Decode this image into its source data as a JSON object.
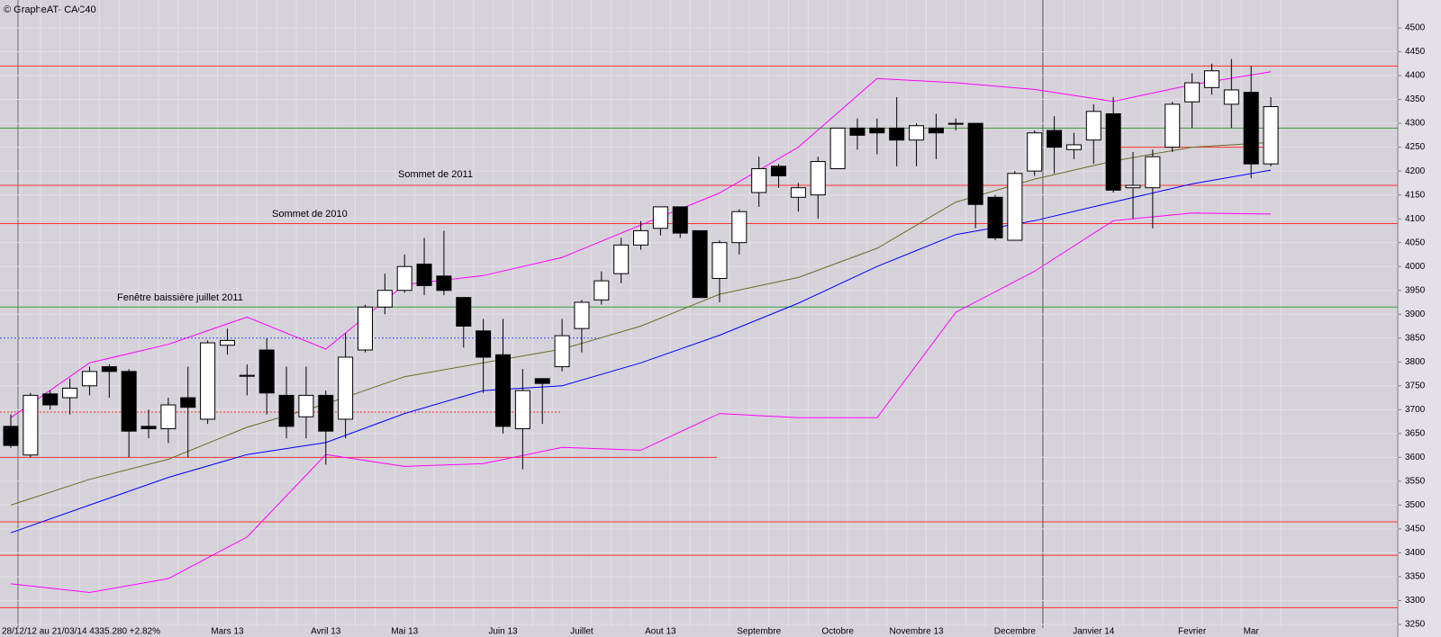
{
  "chart_data": {
    "type": "candlestick",
    "title": "© GrapheAT- CAC40",
    "footer": "28/12/12 au 21/03/14  4335.280  +2.82%",
    "categories": [
      null,
      null,
      null,
      null,
      null,
      null,
      null,
      null,
      null,
      null,
      null,
      "Mars 13",
      null,
      null,
      null,
      null,
      "Avril 13",
      null,
      null,
      null,
      "Mai 13",
      null,
      null,
      null,
      null,
      "Juin 13",
      null,
      null,
      null,
      "Juillet",
      null,
      null,
      null,
      "Aout 13",
      null,
      null,
      null,
      null,
      "Septembre",
      null,
      null,
      null,
      "Octobre",
      null,
      null,
      null,
      "Novembre 13",
      null,
      null,
      null,
      null,
      "Decembre",
      null,
      null,
      null,
      "Janvier 14",
      null,
      null,
      null,
      null,
      "Fevrier",
      null,
      null,
      "Mar",
      null
    ],
    "open": [
      3665,
      3605,
      3733,
      3725,
      3750,
      3790,
      3780,
      3665,
      3660,
      3725,
      3680,
      3835,
      3770,
      3825,
      3730,
      3685,
      3730,
      3680,
      3825,
      3915,
      3950,
      4005,
      3980,
      3935,
      3865,
      3815,
      3660,
      3765,
      3790,
      3870,
      3930,
      3985,
      4045,
      4080,
      4125,
      4075,
      3975,
      4050,
      4155,
      4210,
      4145,
      4150,
      4205,
      4290,
      4290,
      4290,
      4265,
      4290,
      4298,
      4300,
      4145,
      4055,
      4200,
      4285,
      4245,
      4265,
      4320,
      4165,
      4165,
      4250,
      4345,
      4375,
      4340,
      4365,
      4215
    ],
    "high": [
      3690,
      3735,
      3740,
      3765,
      3790,
      3795,
      3785,
      3700,
      3725,
      3790,
      3845,
      3870,
      3795,
      3850,
      3790,
      3790,
      3740,
      3860,
      3920,
      3985,
      4025,
      4060,
      4075,
      3935,
      3890,
      3890,
      3785,
      3765,
      3890,
      3930,
      3990,
      4060,
      4095,
      4125,
      4125,
      4075,
      4055,
      4120,
      4230,
      4215,
      4175,
      4230,
      4290,
      4310,
      4310,
      4355,
      4300,
      4320,
      4310,
      4300,
      4150,
      4200,
      4285,
      4315,
      4280,
      4340,
      4355,
      4240,
      4245,
      4345,
      4405,
      4425,
      4435,
      4420,
      4355
    ],
    "low": [
      3620,
      3600,
      3700,
      3690,
      3730,
      3725,
      3600,
      3640,
      3630,
      3600,
      3670,
      3815,
      3730,
      3690,
      3640,
      3640,
      3585,
      3640,
      3820,
      3900,
      3945,
      3940,
      3940,
      3830,
      3735,
      3650,
      3575,
      3670,
      3780,
      3820,
      3920,
      3965,
      4035,
      4065,
      4060,
      3935,
      3925,
      4025,
      4125,
      4165,
      4115,
      4100,
      4205,
      4245,
      4235,
      4210,
      4210,
      4225,
      4285,
      4080,
      4055,
      4055,
      4190,
      4195,
      4225,
      4215,
      4155,
      4100,
      4080,
      4240,
      4290,
      4360,
      4290,
      4185,
      4210
    ],
    "close": [
      3625,
      3730,
      3710,
      3745,
      3780,
      3780,
      3655,
      3660,
      3710,
      3705,
      3840,
      3845,
      3772,
      3735,
      3665,
      3730,
      3655,
      3810,
      3915,
      3950,
      4000,
      3960,
      3950,
      3875,
      3810,
      3665,
      3740,
      3755,
      3855,
      3925,
      3970,
      4045,
      4075,
      4125,
      4070,
      3935,
      4050,
      4115,
      4205,
      4190,
      4165,
      4220,
      4290,
      4275,
      4280,
      4265,
      4295,
      4280,
      4300,
      4130,
      4060,
      4195,
      4280,
      4250,
      4255,
      4325,
      4160,
      4170,
      4230,
      4340,
      4385,
      4410,
      4370,
      4215,
      4335
    ],
    "lines": [
      {
        "color": "#0000ff",
        "x": [
          0,
          4,
          8,
          12,
          16,
          20,
          24,
          28,
          32,
          36,
          40,
          44,
          48,
          52,
          56,
          60,
          64
        ],
        "values": [
          3442,
          3500,
          3558,
          3606,
          3631,
          3692,
          3740,
          3750,
          3798,
          3856,
          3923,
          4000,
          4067,
          4096,
          4135,
          4173,
          4202
        ]
      },
      {
        "color": "#6b6b2a",
        "x": [
          0,
          4,
          8,
          12,
          16,
          20,
          24,
          28,
          32,
          36,
          40,
          44,
          48,
          52,
          56,
          60,
          64
        ],
        "values": [
          3500,
          3554,
          3596,
          3663,
          3712,
          3769,
          3798,
          3827,
          3875,
          3942,
          3977,
          4038,
          4135,
          4183,
          4221,
          4250,
          4260
        ]
      },
      {
        "color": "#ff00ff",
        "x": [
          0,
          4,
          8,
          12,
          16,
          20,
          24,
          28,
          32,
          36,
          40,
          44,
          48,
          52,
          56,
          60,
          64
        ],
        "values": [
          3683,
          3798,
          3837,
          3894,
          3827,
          3962,
          3981,
          4019,
          4087,
          4154,
          4250,
          4394,
          4385,
          4371,
          4346,
          4381,
          4408
        ]
      },
      {
        "color": "#ff00ff",
        "x": [
          0,
          4,
          8,
          12,
          16,
          20,
          24,
          28,
          32,
          36,
          40,
          44,
          48,
          52,
          56,
          60,
          64
        ],
        "values": [
          3335,
          3317,
          3346,
          3433,
          3606,
          3581,
          3587,
          3621,
          3615,
          3692,
          3683,
          3683,
          3904,
          3990,
          4096,
          4112,
          4110
        ]
      }
    ],
    "levels": [
      {
        "value": 4420,
        "color": "#ff3030"
      },
      {
        "value": 4290,
        "color": "#3a9a3a"
      },
      {
        "value": 4250,
        "color": "#ff3030"
      },
      {
        "value": 4170,
        "color": "#ff3030"
      },
      {
        "value": 4090,
        "color": "#ff3030"
      },
      {
        "value": 3915,
        "color": "#3a9a3a"
      },
      {
        "value": 3850,
        "color": "#3050ff",
        "dash": true
      },
      {
        "value": 3695,
        "color": "#ff3030",
        "dash": true
      },
      {
        "value": 3600,
        "color": "#ff3030"
      },
      {
        "value": 3465,
        "color": "#ff3030"
      },
      {
        "value": 3395,
        "color": "#ff3030"
      },
      {
        "value": 3285,
        "color": "#ff3030"
      }
    ],
    "annotations": [
      "Sommet de 2011",
      "Sommet de 2010",
      "Fenêtre baissière juillet 2011"
    ],
    "ylim": [
      3250,
      4500
    ],
    "yticks": [
      3250,
      3300,
      3350,
      3400,
      3450,
      3500,
      3550,
      3600,
      3650,
      3700,
      3750,
      3800,
      3850,
      3900,
      3950,
      4000,
      4050,
      4100,
      4150,
      4200,
      4250,
      4300,
      4350,
      4400,
      4450,
      4500
    ],
    "grid": true
  }
}
